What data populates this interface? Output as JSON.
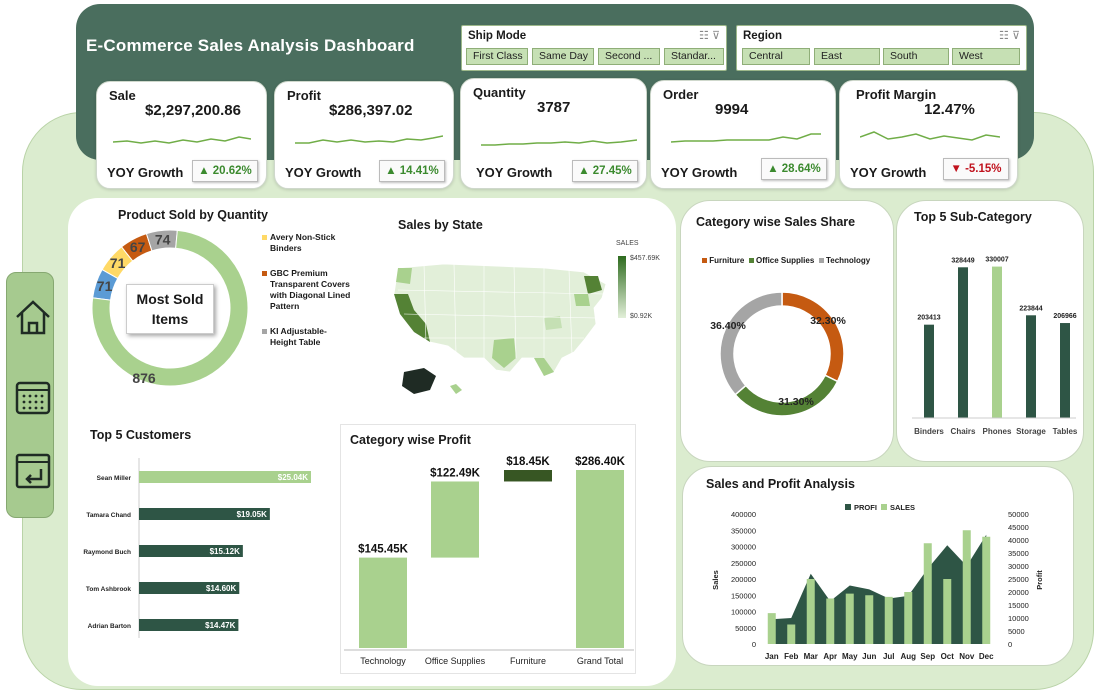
{
  "header": {
    "title": "E-Commerce Sales Analysis Dashboard"
  },
  "slicers": {
    "ship_mode": {
      "title": "Ship Mode",
      "options": [
        "First Class",
        "Same Day",
        "Second ...",
        "Standar..."
      ]
    },
    "region": {
      "title": "Region",
      "options": [
        "Central",
        "East",
        "South",
        "West"
      ]
    }
  },
  "kpis": [
    {
      "label": "Sale",
      "value": "$2,297,200.86",
      "yoy_label": "YOY Growth",
      "growth": "20.62%",
      "direction": "up"
    },
    {
      "label": "Profit",
      "value": "$286,397.02",
      "yoy_label": "YOY Growth",
      "growth": "14.41%",
      "direction": "up"
    },
    {
      "label": "Quantity",
      "value": "3787",
      "yoy_label": "YOY Growth",
      "growth": "27.45%",
      "direction": "up"
    },
    {
      "label": "Order",
      "value": "9994",
      "yoy_label": "YOY Growth",
      "growth": "28.64%",
      "direction": "up"
    },
    {
      "label": "Profit Margin",
      "value": "12.47%",
      "yoy_label": "YOY Growth",
      "growth": "-5.15%",
      "direction": "down"
    }
  ],
  "nav": {
    "icons": [
      "home-icon",
      "calendar-icon",
      "exit-icon"
    ]
  },
  "product_sold": {
    "title": "Product Sold by Quantity",
    "center_label_line1": "Most Sold",
    "center_label_line2": "Items",
    "legend": [
      "Avery Non-Stick Binders",
      "GBC Premium Transparent Covers with Diagonal Lined Pattern",
      "KI Adjustable-Height Table"
    ],
    "chart_data": {
      "type": "pie",
      "values": [
        876,
        71,
        71,
        67,
        74
      ],
      "labels": [
        "876",
        "71",
        "71",
        "67",
        "74"
      ],
      "colors": [
        "#a9d18e",
        "#5b9bd5",
        "#ffd966",
        "#c55a11",
        "#a5a5a5"
      ]
    }
  },
  "sales_by_state": {
    "title": "Sales by State",
    "legend_title": "SALES",
    "legend_max": "$457.69K",
    "legend_min": "$0.92K"
  },
  "category_share": {
    "title": "Category wise Sales Share",
    "chart_data": {
      "type": "pie",
      "categories": [
        "Furniture",
        "Office Supplies",
        "Technology"
      ],
      "values": [
        32.3,
        31.3,
        36.4
      ],
      "labels": [
        "32.30%",
        "31.30%",
        "36.40%"
      ],
      "colors": [
        "#c55a11",
        "#548235",
        "#a5a5a5"
      ]
    }
  },
  "top_subcategory": {
    "title": "Top 5 Sub-Category",
    "chart_data": {
      "type": "bar",
      "categories": [
        "Binders",
        "Chairs",
        "Phones",
        "Storage",
        "Tables"
      ],
      "values": [
        203413,
        328449,
        330007,
        223844,
        206966
      ],
      "colors": [
        "#2e5545",
        "#2e5545",
        "#a9d18e",
        "#2e5545",
        "#2e5545"
      ]
    }
  },
  "top_customers": {
    "title": "Top 5 Customers",
    "chart_data": {
      "type": "bar",
      "categories": [
        "Sean Miller",
        "Tamara Chand",
        "Raymond Buch",
        "Tom Ashbrook",
        "Adrian Barton"
      ],
      "values": [
        25.04,
        19.05,
        15.12,
        14.6,
        14.47
      ],
      "labels": [
        "$25.04K",
        "$19.05K",
        "$15.12K",
        "$14.60K",
        "$14.47K"
      ],
      "colors": [
        "#a9d18e",
        "#2e5545",
        "#2e5545",
        "#2e5545",
        "#2e5545"
      ]
    }
  },
  "category_profit": {
    "title": "Category wise Profit",
    "chart_data": {
      "type": "bar",
      "categories": [
        "Technology",
        "Office Supplies",
        "Furniture",
        "Grand Total"
      ],
      "values": [
        145.45,
        122.49,
        18.45,
        286.4
      ],
      "labels": [
        "$145.45K",
        "$122.49K",
        "$18.45K",
        "$286.40K"
      ],
      "colors": [
        "#a9d18e",
        "#a9d18e",
        "#375623",
        "#a9d18e"
      ]
    }
  },
  "sales_profit": {
    "title": "Sales and Profit Analysis",
    "chart_data": {
      "type": "bar",
      "categories": [
        "Jan",
        "Feb",
        "Mar",
        "Apr",
        "May",
        "Jun",
        "Jul",
        "Aug",
        "Sep",
        "Oct",
        "Nov",
        "Dec"
      ],
      "series": [
        {
          "name": "PROFI",
          "values": [
            9500,
            10000,
            27000,
            16500,
            22500,
            21000,
            17500,
            18500,
            29000,
            38000,
            30000,
            42000
          ]
        },
        {
          "name": "SALES",
          "values": [
            95000,
            60000,
            200000,
            140000,
            155000,
            150000,
            145000,
            160000,
            310000,
            200000,
            350000,
            330000
          ]
        }
      ],
      "ylabel": "Sales",
      "y2label": "Profit",
      "yticks": [
        "400000",
        "350000",
        "300000",
        "250000",
        "200000",
        "150000",
        "100000",
        "50000",
        "0"
      ],
      "y2ticks": [
        "50000",
        "45000",
        "40000",
        "35000",
        "30000",
        "25000",
        "20000",
        "15000",
        "10000",
        "5000",
        "0"
      ],
      "ylim": [
        0,
        400000
      ],
      "y2lim": [
        0,
        50000
      ],
      "colors": [
        "#2e5545",
        "#a9d18e"
      ]
    }
  }
}
